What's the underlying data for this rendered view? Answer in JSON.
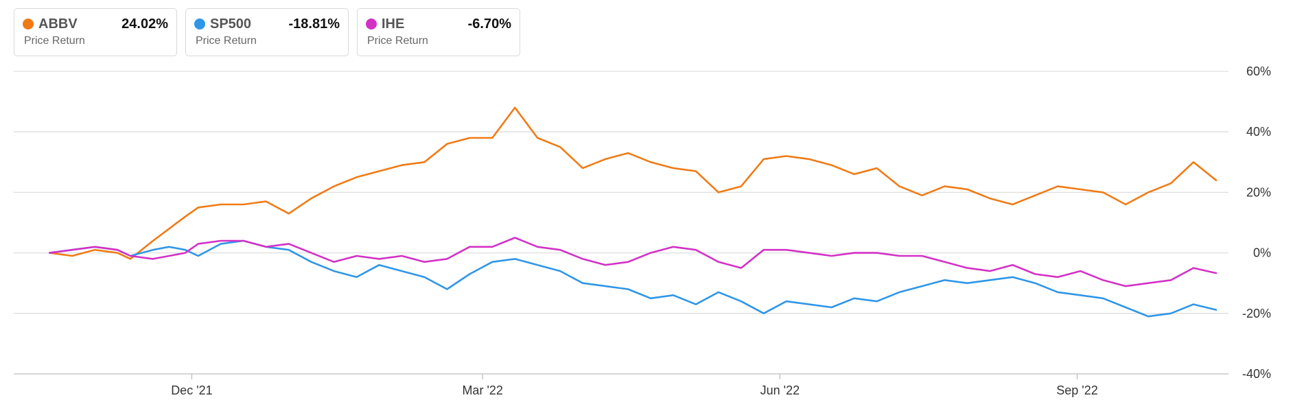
{
  "legend": [
    {
      "ticker": "ABBV",
      "return": "24.02%",
      "subtitle": "Price Return",
      "color": "#f07b16"
    },
    {
      "ticker": "SP500",
      "return": "-18.81%",
      "subtitle": "Price Return",
      "color": "#2f96e8"
    },
    {
      "ticker": "IHE",
      "return": "-6.70%",
      "subtitle": "Price Return",
      "color": "#d331c6"
    }
  ],
  "chart_data": {
    "type": "line",
    "ylim": [
      -40,
      60
    ],
    "yticks": [
      60,
      40,
      20,
      0,
      -20,
      -40
    ],
    "ytick_labels": [
      "60%",
      "40%",
      "20%",
      "0%",
      "-20%",
      "-40%"
    ],
    "xlim": [
      "2021-10-12",
      "2022-10-14"
    ],
    "xticks": [
      "2021-12-01",
      "2022-03-01",
      "2022-06-01",
      "2022-09-01"
    ],
    "xtick_labels": [
      "Dec '21",
      "Mar '22",
      "Jun '22",
      "Sep '22"
    ],
    "grid": "horizontal",
    "series": [
      {
        "name": "ABBV",
        "color": "#f07b16",
        "x": [
          "2021-10-18",
          "2021-10-25",
          "2021-11-01",
          "2021-11-08",
          "2021-11-12",
          "2021-11-19",
          "2021-11-24",
          "2021-11-29",
          "2021-12-03",
          "2021-12-10",
          "2021-12-17",
          "2021-12-24",
          "2021-12-31",
          "2022-01-07",
          "2022-01-14",
          "2022-01-21",
          "2022-01-28",
          "2022-02-04",
          "2022-02-11",
          "2022-02-18",
          "2022-02-25",
          "2022-03-04",
          "2022-03-11",
          "2022-03-18",
          "2022-03-25",
          "2022-04-01",
          "2022-04-08",
          "2022-04-15",
          "2022-04-22",
          "2022-04-29",
          "2022-05-06",
          "2022-05-13",
          "2022-05-20",
          "2022-05-27",
          "2022-06-03",
          "2022-06-10",
          "2022-06-17",
          "2022-06-24",
          "2022-07-01",
          "2022-07-08",
          "2022-07-15",
          "2022-07-22",
          "2022-07-29",
          "2022-08-05",
          "2022-08-12",
          "2022-08-19",
          "2022-08-26",
          "2022-09-02",
          "2022-09-09",
          "2022-09-16",
          "2022-09-23",
          "2022-09-30",
          "2022-10-07",
          "2022-10-14"
        ],
        "y": [
          0,
          -1,
          1,
          0,
          -2,
          4,
          8,
          12,
          15,
          16,
          16,
          17,
          13,
          18,
          22,
          25,
          27,
          29,
          30,
          36,
          38,
          38,
          48,
          38,
          35,
          28,
          31,
          33,
          30,
          28,
          27,
          20,
          22,
          31,
          32,
          31,
          29,
          26,
          28,
          22,
          19,
          22,
          21,
          18,
          16,
          19,
          22,
          21,
          20,
          16,
          20,
          23,
          30,
          24
        ]
      },
      {
        "name": "SP500",
        "color": "#2f96e8",
        "x": [
          "2021-10-18",
          "2021-10-25",
          "2021-11-01",
          "2021-11-08",
          "2021-11-12",
          "2021-11-19",
          "2021-11-24",
          "2021-11-29",
          "2021-12-03",
          "2021-12-10",
          "2021-12-17",
          "2021-12-24",
          "2021-12-31",
          "2022-01-07",
          "2022-01-14",
          "2022-01-21",
          "2022-01-28",
          "2022-02-04",
          "2022-02-11",
          "2022-02-18",
          "2022-02-25",
          "2022-03-04",
          "2022-03-11",
          "2022-03-18",
          "2022-03-25",
          "2022-04-01",
          "2022-04-08",
          "2022-04-15",
          "2022-04-22",
          "2022-04-29",
          "2022-05-06",
          "2022-05-13",
          "2022-05-20",
          "2022-05-27",
          "2022-06-03",
          "2022-06-10",
          "2022-06-17",
          "2022-06-24",
          "2022-07-01",
          "2022-07-08",
          "2022-07-15",
          "2022-07-22",
          "2022-07-29",
          "2022-08-05",
          "2022-08-12",
          "2022-08-19",
          "2022-08-26",
          "2022-09-02",
          "2022-09-09",
          "2022-09-16",
          "2022-09-23",
          "2022-09-30",
          "2022-10-07",
          "2022-10-14"
        ],
        "y": [
          0,
          1,
          2,
          1,
          -1,
          1,
          2,
          1,
          -1,
          3,
          4,
          2,
          1,
          -3,
          -6,
          -8,
          -4,
          -6,
          -8,
          -12,
          -7,
          -3,
          -2,
          -4,
          -6,
          -10,
          -11,
          -12,
          -15,
          -14,
          -17,
          -13,
          -16,
          -20,
          -16,
          -17,
          -18,
          -15,
          -16,
          -13,
          -11,
          -9,
          -10,
          -9,
          -8,
          -10,
          -13,
          -14,
          -15,
          -18,
          -21,
          -20,
          -17,
          -18.81
        ]
      },
      {
        "name": "IHE",
        "color": "#d331c6",
        "x": [
          "2021-10-18",
          "2021-10-25",
          "2021-11-01",
          "2021-11-08",
          "2021-11-12",
          "2021-11-19",
          "2021-11-24",
          "2021-11-29",
          "2021-12-03",
          "2021-12-10",
          "2021-12-17",
          "2021-12-24",
          "2021-12-31",
          "2022-01-07",
          "2022-01-14",
          "2022-01-21",
          "2022-01-28",
          "2022-02-04",
          "2022-02-11",
          "2022-02-18",
          "2022-02-25",
          "2022-03-04",
          "2022-03-11",
          "2022-03-18",
          "2022-03-25",
          "2022-04-01",
          "2022-04-08",
          "2022-04-15",
          "2022-04-22",
          "2022-04-29",
          "2022-05-06",
          "2022-05-13",
          "2022-05-20",
          "2022-05-27",
          "2022-06-03",
          "2022-06-10",
          "2022-06-17",
          "2022-06-24",
          "2022-07-01",
          "2022-07-08",
          "2022-07-15",
          "2022-07-22",
          "2022-07-29",
          "2022-08-05",
          "2022-08-12",
          "2022-08-19",
          "2022-08-26",
          "2022-09-02",
          "2022-09-09",
          "2022-09-16",
          "2022-09-23",
          "2022-09-30",
          "2022-10-07",
          "2022-10-14"
        ],
        "y": [
          0,
          1,
          2,
          1,
          -1,
          -2,
          -1,
          0,
          3,
          4,
          4,
          2,
          3,
          0,
          -3,
          -1,
          -2,
          -1,
          -3,
          -2,
          2,
          2,
          5,
          2,
          1,
          -2,
          -4,
          -3,
          0,
          2,
          1,
          -3,
          -5,
          1,
          1,
          0,
          -1,
          0,
          0,
          -1,
          -1,
          -3,
          -5,
          -6,
          -4,
          -7,
          -8,
          -6,
          -9,
          -11,
          -10,
          -9,
          -5,
          -6.7
        ]
      }
    ]
  }
}
